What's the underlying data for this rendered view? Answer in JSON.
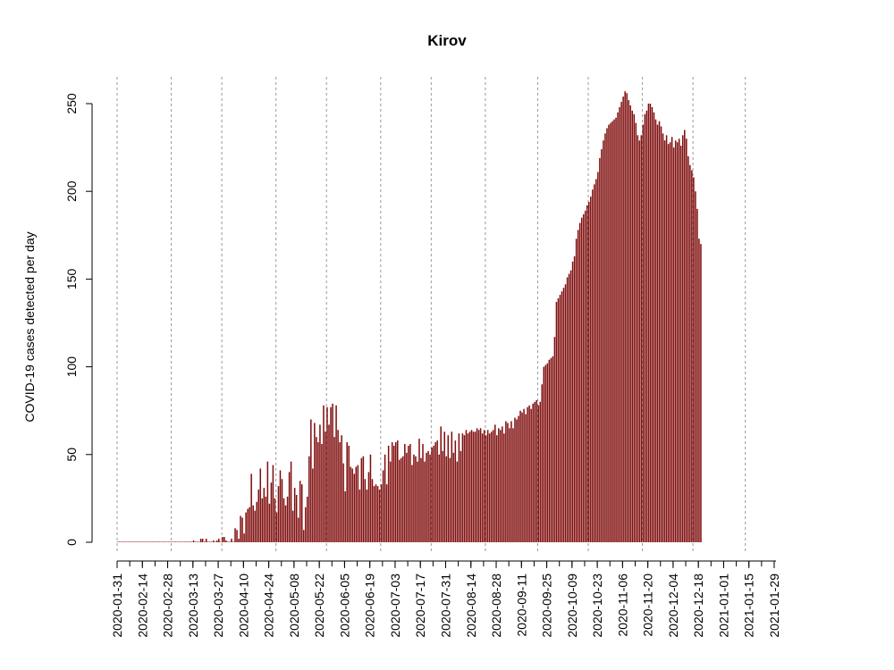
{
  "chart_data": {
    "type": "bar",
    "title": "Kirov",
    "xlabel": "",
    "ylabel": "COVID-19 cases detected per day",
    "ylim": [
      0,
      250
    ],
    "y_ticks": [
      0,
      50,
      100,
      150,
      200,
      250
    ],
    "x_ticks": [
      "2020-01-31",
      "2020-02-14",
      "2020-02-28",
      "2020-03-13",
      "2020-03-27",
      "2020-04-10",
      "2020-04-24",
      "2020-05-08",
      "2020-05-22",
      "2020-06-05",
      "2020-06-19",
      "2020-07-03",
      "2020-07-17",
      "2020-07-31",
      "2020-08-14",
      "2020-08-28",
      "2020-09-11",
      "2020-09-25",
      "2020-10-09",
      "2020-10-23",
      "2020-11-06",
      "2020-11-20",
      "2020-12-04",
      "2020-12-18",
      "2021-01-01",
      "2021-01-15",
      "2021-01-29"
    ],
    "vlines": [
      "2020-01-31",
      "2020-03-01",
      "2020-03-29",
      "2020-04-28",
      "2020-05-26",
      "2020-06-25",
      "2020-07-23",
      "2020-08-22",
      "2020-09-20",
      "2020-10-18",
      "2020-11-17",
      "2020-12-15",
      "2021-01-13"
    ],
    "x_start": "2020-01-31",
    "x_end": "2021-01-30",
    "bar_color": "#7f0d0d",
    "values": [
      0,
      0,
      0,
      0,
      0,
      0,
      0,
      0,
      0,
      0,
      0,
      0,
      0,
      0,
      0,
      0,
      0,
      0,
      0,
      0,
      0,
      0,
      0,
      0,
      0,
      0,
      0,
      0,
      0,
      0,
      0,
      0,
      0,
      0,
      0,
      0,
      0,
      0,
      0,
      0,
      0,
      0,
      1,
      0,
      0,
      0,
      2,
      2,
      0,
      2,
      0,
      0,
      0,
      1,
      0,
      1,
      2,
      0,
      3,
      3,
      1,
      0,
      0,
      2,
      0,
      8,
      7,
      2,
      15,
      14,
      5,
      17,
      19,
      20,
      39,
      21,
      18,
      23,
      30,
      42,
      25,
      31,
      26,
      46,
      22,
      34,
      44,
      25,
      17,
      32,
      41,
      36,
      25,
      21,
      26,
      40,
      46,
      18,
      31,
      27,
      14,
      35,
      33,
      7,
      20,
      26,
      49,
      70,
      42,
      68,
      60,
      57,
      67,
      56,
      78,
      63,
      77,
      67,
      77,
      79,
      60,
      78,
      64,
      57,
      61,
      45,
      29,
      57,
      55,
      43,
      42,
      39,
      43,
      44,
      30,
      48,
      49,
      36,
      30,
      40,
      50,
      36,
      32,
      33,
      32,
      30,
      33,
      41,
      50,
      33,
      55,
      46,
      57,
      55,
      57,
      58,
      47,
      48,
      49,
      56,
      51,
      55,
      56,
      44,
      50,
      49,
      46,
      59,
      48,
      56,
      46,
      51,
      52,
      50,
      54,
      55,
      57,
      58,
      50,
      66,
      52,
      63,
      49,
      61,
      48,
      63,
      51,
      58,
      46,
      62,
      52,
      62,
      61,
      64,
      62,
      63,
      64,
      63,
      63,
      65,
      64,
      65,
      62,
      64,
      61,
      64,
      62,
      63,
      64,
      67,
      61,
      65,
      64,
      66,
      62,
      69,
      68,
      65,
      69,
      65,
      71,
      70,
      72,
      75,
      74,
      76,
      73,
      77,
      78,
      76,
      79,
      80,
      81,
      78,
      80,
      90,
      100,
      101,
      102,
      104,
      105,
      106,
      117,
      137,
      139,
      141,
      143,
      145,
      147,
      151,
      153,
      155,
      160,
      163,
      173,
      178,
      182,
      185,
      187,
      189,
      192,
      194,
      197,
      201,
      204,
      207,
      211,
      219,
      224,
      229,
      233,
      236,
      238,
      239,
      240,
      241,
      242,
      245,
      248,
      251,
      254,
      257,
      256,
      252,
      249,
      246,
      244,
      239,
      232,
      229,
      232,
      238,
      244,
      246,
      250,
      250,
      248,
      245,
      241,
      238,
      240,
      237,
      233,
      229,
      232,
      227,
      228,
      231,
      225,
      229,
      228,
      230,
      226,
      232,
      235,
      230,
      220,
      215,
      212,
      208,
      200,
      190,
      173,
      170
    ]
  }
}
